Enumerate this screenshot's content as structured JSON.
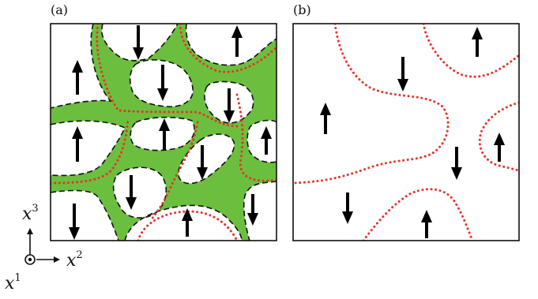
{
  "panels": [
    {
      "label": "(a)"
    },
    {
      "label": "(b)"
    }
  ],
  "axes": {
    "vertical": {
      "base": "x",
      "sup": "3"
    },
    "horizontal": {
      "base": "x",
      "sup": "2"
    },
    "out_of_page": {
      "base": "x",
      "sup": "1"
    }
  },
  "colors": {
    "domain_wall": "#6cbf3e",
    "dotted_line": "#e8332a",
    "frame": "#111111",
    "arrow": "#000000"
  },
  "icons": {
    "spin_up": "up-arrow-icon",
    "spin_down": "down-arrow-icon",
    "out_of_page_axis": "dot-in-circle-icon"
  }
}
